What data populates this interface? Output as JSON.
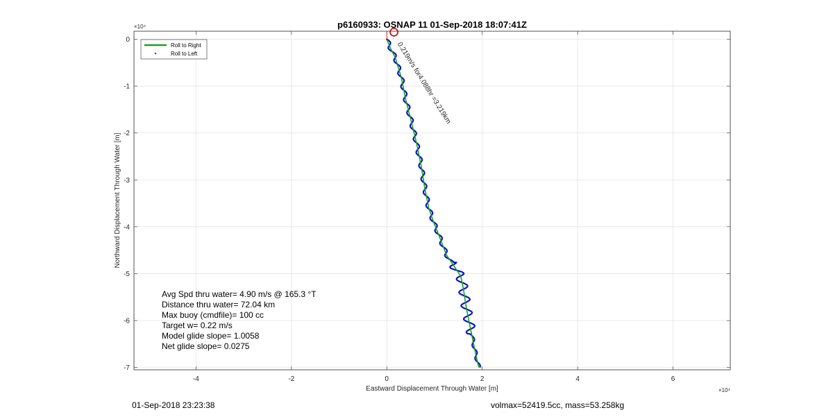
{
  "chart_data": {
    "type": "line",
    "title": "p6160933: OSNAP 11 01-Sep-2018 18:07:41Z",
    "xlabel": "Eastward Displacement Through Water [m]",
    "ylabel": "Northward Displacement Through Water [m]",
    "x_multiplier": "×10⁴",
    "y_multiplier": "×10⁴",
    "xlim": [
      -5.3,
      7.2
    ],
    "ylim": [
      -7.05,
      0.17
    ],
    "xticks": [
      -4,
      -2,
      0,
      2,
      4,
      6
    ],
    "yticks": [
      0,
      -1,
      -2,
      -3,
      -4,
      -5,
      -6,
      -7
    ],
    "grid": true,
    "legend_placement": "top-left",
    "legend": [
      {
        "label": "Roll to Right",
        "color": "#1aa31a"
      },
      {
        "label": "Roll to Left",
        "color": "#cc0000"
      }
    ],
    "series": [
      {
        "name": "Roll to Right",
        "color": "#1aa31a",
        "x": [
          0,
          0.08,
          0.18,
          0.3,
          0.4,
          0.5,
          0.62,
          0.72,
          0.8,
          0.88,
          0.98,
          1.1,
          1.25,
          1.45,
          1.55,
          1.6,
          1.68,
          1.78,
          1.86,
          1.93
        ],
        "y": [
          0,
          -0.2,
          -0.4,
          -0.8,
          -1.3,
          -1.7,
          -2.2,
          -2.7,
          -3.2,
          -3.6,
          -3.9,
          -4.2,
          -4.6,
          -4.9,
          -5.05,
          -5.3,
          -5.8,
          -6.3,
          -6.7,
          -7.0
        ]
      },
      {
        "name": "Roll to Left",
        "color": "#cc0000",
        "x": [
          0
        ],
        "y": [
          0
        ]
      }
    ],
    "wiggle_trace": {
      "color": "#0a14c8",
      "x": [
        0,
        0.08,
        0.18,
        0.3,
        0.4,
        0.5,
        0.62,
        0.72,
        0.8,
        0.88,
        0.98,
        1.1,
        1.25,
        1.45,
        1.55,
        1.6,
        1.68,
        1.78,
        1.86,
        1.93
      ],
      "y": [
        0,
        -0.2,
        -0.4,
        -0.8,
        -1.3,
        -1.7,
        -2.2,
        -2.7,
        -3.2,
        -3.6,
        -3.9,
        -4.2,
        -4.6,
        -4.9,
        -5.05,
        -5.3,
        -5.8,
        -6.3,
        -6.7,
        -7.0
      ]
    },
    "current_marker": {
      "x": 0.15,
      "y": 0.15,
      "color": "#cc0000"
    },
    "current_annotation": {
      "text": "0.219m/s for4.088hr =3.219km",
      "x": 0.22,
      "y": -0.1
    },
    "stats": [
      "Avg Spd thru water=  4.90 m/s @ 165.3 °T",
      "Distance thru water= 72.04 km",
      "Max buoy (cmdfile)= 100 cc",
      "Target w= 0.22 m/s",
      "Model glide slope= 1.0058",
      "Net glide slope= 0.0275"
    ]
  },
  "footer": {
    "left": "01-Sep-2018 23:23:38",
    "right": "volmax=52419.5cc, mass=53.258kg"
  }
}
